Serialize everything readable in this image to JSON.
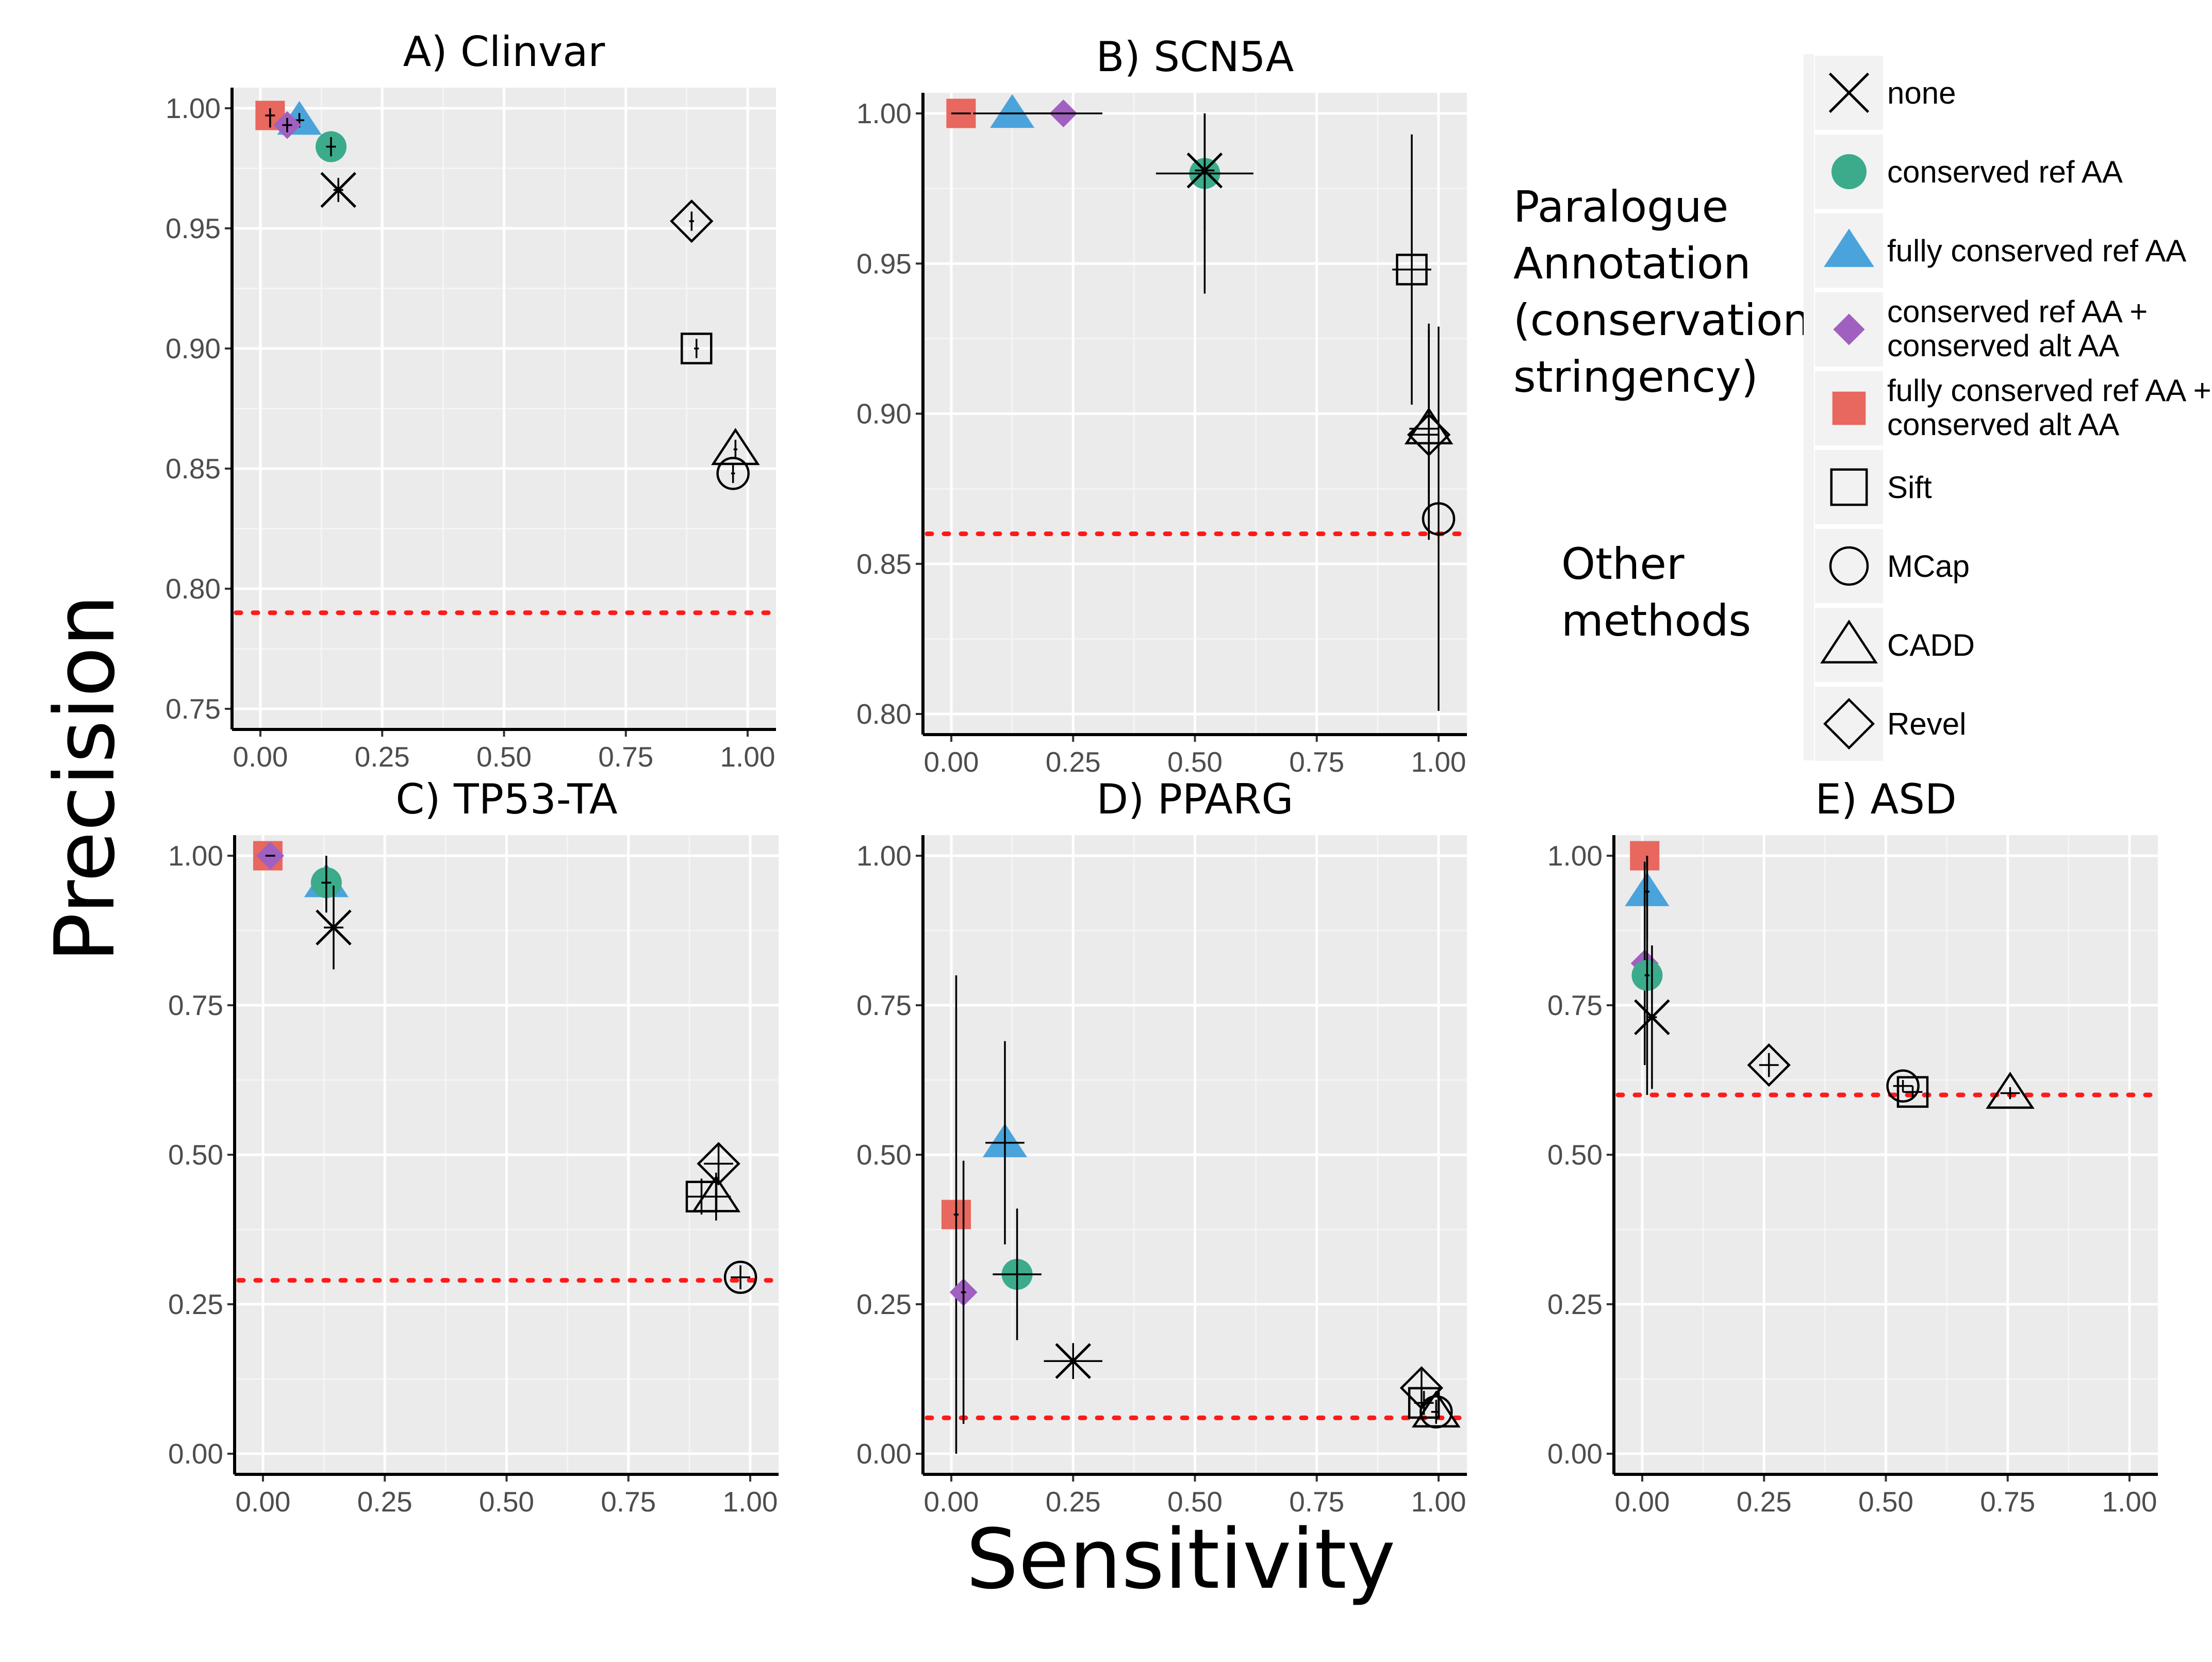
{
  "figure": {
    "ylabel": "Precision",
    "xlabel": "Sensitivity",
    "legend_group_paralogue": [
      "Paralogue",
      "Annotation",
      "(conservation",
      "stringency)"
    ],
    "legend_group_other": [
      "Other",
      "methods"
    ]
  },
  "legend": {
    "entries": [
      {
        "method": "none",
        "lines": [
          "none"
        ],
        "shape": "x-cross-icon",
        "color": "#000000"
      },
      {
        "method": "conserved ref AA",
        "lines": [
          "conserved ref AA"
        ],
        "shape": "filled-circle-icon",
        "color": "#3bab8c"
      },
      {
        "method": "fully conserved ref AA",
        "lines": [
          "fully conserved ref AA"
        ],
        "shape": "filled-triangle-icon",
        "color": "#4ba3db"
      },
      {
        "method": "conserved ref AA + conserved alt AA",
        "lines": [
          "conserved ref AA +",
          "conserved alt AA"
        ],
        "shape": "filled-diamond-icon",
        "color": "#a060c0"
      },
      {
        "method": "fully conserved ref AA + conserved alt AA",
        "lines": [
          "fully conserved ref AA +",
          "conserved alt AA"
        ],
        "shape": "filled-square-icon",
        "color": "#e8675e"
      },
      {
        "method": "Sift",
        "lines": [
          "Sift"
        ],
        "shape": "open-square-icon",
        "color": "#000000"
      },
      {
        "method": "MCap",
        "lines": [
          "MCap"
        ],
        "shape": "open-circle-icon",
        "color": "#000000"
      },
      {
        "method": "CADD",
        "lines": [
          "CADD"
        ],
        "shape": "open-triangle-icon",
        "color": "#000000"
      },
      {
        "method": "Revel",
        "lines": [
          "Revel"
        ],
        "shape": "open-diamond-icon",
        "color": "#000000"
      }
    ]
  },
  "chart_data": [
    {
      "type": "scatter",
      "title": "A) Clinvar",
      "xlim": [
        0,
        1
      ],
      "ylim": [
        0.75,
        1.0
      ],
      "xticks": [
        "0.00",
        "0.25",
        "0.50",
        "0.75",
        "1.00"
      ],
      "yticks": [
        "0.75",
        "0.80",
        "0.85",
        "0.90",
        "0.95",
        "1.00"
      ],
      "baseline_precision": 0.79,
      "points": [
        {
          "method": "fully conserved ref AA + conserved alt AA",
          "x": 0.02,
          "y": 0.997,
          "xerr": 0.01,
          "yerr": 0.005
        },
        {
          "method": "fully conserved ref AA",
          "x": 0.08,
          "y": 0.995,
          "xerr": 0.01,
          "yerr": 0.003
        },
        {
          "method": "conserved ref AA + conserved alt AA",
          "x": 0.055,
          "y": 0.993,
          "xerr": 0.01,
          "yerr": 0.003
        },
        {
          "method": "conserved ref AA",
          "x": 0.145,
          "y": 0.984,
          "xerr": 0.01,
          "yerr": 0.004
        },
        {
          "method": "none",
          "x": 0.16,
          "y": 0.966,
          "xerr": 0.01,
          "yerr": 0.005
        },
        {
          "method": "Revel",
          "x": 0.885,
          "y": 0.953,
          "xerr": 0.005,
          "yerr": 0.004
        },
        {
          "method": "Sift",
          "x": 0.895,
          "y": 0.9,
          "xerr": 0.005,
          "yerr": 0.004
        },
        {
          "method": "CADD",
          "x": 0.975,
          "y": 0.858,
          "xerr": 0.004,
          "yerr": 0.004
        },
        {
          "method": "MCap",
          "x": 0.97,
          "y": 0.848,
          "xerr": 0.004,
          "yerr": 0.004
        }
      ]
    },
    {
      "type": "scatter",
      "title": "B) SCN5A",
      "xlim": [
        0,
        1
      ],
      "ylim": [
        0.8,
        1.0
      ],
      "xticks": [
        "0.00",
        "0.25",
        "0.50",
        "0.75",
        "1.00"
      ],
      "yticks": [
        "0.80",
        "0.85",
        "0.90",
        "0.95",
        "1.00"
      ],
      "baseline_precision": 0.86,
      "points": [
        {
          "method": "fully conserved ref AA + conserved alt AA",
          "x": 0.02,
          "y": 1.0,
          "xerr": 0.02,
          "yerr": 0.0
        },
        {
          "method": "fully conserved ref AA",
          "x": 0.125,
          "y": 1.0,
          "xerr": 0.08,
          "yerr": 0.0
        },
        {
          "method": "conserved ref AA + conserved alt AA",
          "x": 0.23,
          "y": 1.0,
          "xerr": 0.08,
          "yerr": 0.0
        },
        {
          "method": "conserved ref AA",
          "x": 0.52,
          "y": 0.98,
          "xerr": 0.1,
          "yerr": 0.04
        },
        {
          "method": "none",
          "x": 0.52,
          "y": 0.981,
          "xerr": 0.02,
          "yerr": 0.02
        },
        {
          "method": "Sift",
          "x": 0.945,
          "y": 0.948,
          "xerr": 0.04,
          "yerr": 0.045
        },
        {
          "method": "CADD",
          "x": 0.98,
          "y": 0.895,
          "xerr": 0.04,
          "yerr": 0.035
        },
        {
          "method": "Revel",
          "x": 0.98,
          "y": 0.893,
          "xerr": 0.04,
          "yerr": 0.035
        },
        {
          "method": "MCap",
          "x": 1.0,
          "y": 0.865,
          "xerr": 0.0,
          "yerr": 0.064
        }
      ]
    },
    {
      "type": "scatter",
      "title": "C) TP53-TA",
      "xlim": [
        0,
        1
      ],
      "ylim": [
        0,
        1.0
      ],
      "xticks": [
        "0.00",
        "0.25",
        "0.50",
        "0.75",
        "1.00"
      ],
      "yticks": [
        "0.00",
        "0.25",
        "0.50",
        "0.75",
        "1.00"
      ],
      "baseline_precision": 0.29,
      "points": [
        {
          "method": "fully conserved ref AA + conserved alt AA",
          "x": 0.01,
          "y": 1.0,
          "xerr": 0.005,
          "yerr": 0.0
        },
        {
          "method": "conserved ref AA + conserved alt AA",
          "x": 0.015,
          "y": 1.0,
          "xerr": 0.01,
          "yerr": 0.0
        },
        {
          "method": "fully conserved ref AA",
          "x": 0.13,
          "y": 0.955,
          "xerr": 0.02,
          "yerr": 0.05
        },
        {
          "method": "conserved ref AA",
          "x": 0.13,
          "y": 0.955,
          "xerr": 0.01,
          "yerr": 0.03
        },
        {
          "method": "none",
          "x": 0.145,
          "y": 0.88,
          "xerr": 0.02,
          "yerr": 0.07
        },
        {
          "method": "Revel",
          "x": 0.935,
          "y": 0.485,
          "xerr": 0.03,
          "yerr": 0.03
        },
        {
          "method": "CADD",
          "x": 0.93,
          "y": 0.43,
          "xerr": 0.03,
          "yerr": 0.04
        },
        {
          "method": "Sift",
          "x": 0.9,
          "y": 0.43,
          "xerr": 0.03,
          "yerr": 0.03
        },
        {
          "method": "MCap",
          "x": 0.98,
          "y": 0.295,
          "xerr": 0.02,
          "yerr": 0.02
        }
      ]
    },
    {
      "type": "scatter",
      "title": "D) PPARG",
      "xlim": [
        0,
        1
      ],
      "ylim": [
        0,
        1.0
      ],
      "xticks": [
        "0.00",
        "0.25",
        "0.50",
        "0.75",
        "1.00"
      ],
      "yticks": [
        "0.00",
        "0.25",
        "0.50",
        "0.75",
        "1.00"
      ],
      "baseline_precision": 0.06,
      "points": [
        {
          "method": "fully conserved ref AA + conserved alt AA",
          "x": 0.01,
          "y": 0.4,
          "xerr": 0.005,
          "yerr": 0.4
        },
        {
          "method": "conserved ref AA + conserved alt AA",
          "x": 0.025,
          "y": 0.27,
          "xerr": 0.005,
          "yerr": 0.22
        },
        {
          "method": "fully conserved ref AA",
          "x": 0.11,
          "y": 0.52,
          "xerr": 0.04,
          "yerr": 0.17
        },
        {
          "method": "conserved ref AA",
          "x": 0.135,
          "y": 0.3,
          "xerr": 0.05,
          "yerr": 0.11
        },
        {
          "method": "none",
          "x": 0.25,
          "y": 0.155,
          "xerr": 0.06,
          "yerr": 0.03
        },
        {
          "method": "Revel",
          "x": 0.965,
          "y": 0.11,
          "xerr": 0.02,
          "yerr": 0.03
        },
        {
          "method": "Sift",
          "x": 0.97,
          "y": 0.085,
          "xerr": 0.02,
          "yerr": 0.02
        },
        {
          "method": "CADD",
          "x": 0.995,
          "y": 0.07,
          "xerr": 0.01,
          "yerr": 0.02
        },
        {
          "method": "MCap",
          "x": 0.995,
          "y": 0.07,
          "xerr": 0.01,
          "yerr": 0.02
        }
      ]
    },
    {
      "type": "scatter",
      "title": "E) ASD",
      "xlim": [
        0,
        1
      ],
      "ylim": [
        0,
        1.0
      ],
      "xticks": [
        "0.00",
        "0.25",
        "0.50",
        "0.75",
        "1.00"
      ],
      "yticks": [
        "0.00",
        "0.25",
        "0.50",
        "0.75",
        "1.00"
      ],
      "baseline_precision": 0.6,
      "points": [
        {
          "method": "fully conserved ref AA + conserved alt AA",
          "x": 0.005,
          "y": 1.0,
          "xerr": 0.0,
          "yerr": 0.0
        },
        {
          "method": "fully conserved ref AA",
          "x": 0.01,
          "y": 0.94,
          "xerr": 0.005,
          "yerr": 0.08
        },
        {
          "method": "conserved ref AA + conserved alt AA",
          "x": 0.005,
          "y": 0.82,
          "xerr": 0.005,
          "yerr": 0.17
        },
        {
          "method": "conserved ref AA",
          "x": 0.01,
          "y": 0.8,
          "xerr": 0.005,
          "yerr": 0.2
        },
        {
          "method": "none",
          "x": 0.02,
          "y": 0.73,
          "xerr": 0.01,
          "yerr": 0.12
        },
        {
          "method": "Revel",
          "x": 0.26,
          "y": 0.65,
          "xerr": 0.02,
          "yerr": 0.02
        },
        {
          "method": "MCap",
          "x": 0.535,
          "y": 0.615,
          "xerr": 0.02,
          "yerr": 0.01
        },
        {
          "method": "Sift",
          "x": 0.555,
          "y": 0.605,
          "xerr": 0.02,
          "yerr": 0.01
        },
        {
          "method": "CADD",
          "x": 0.755,
          "y": 0.603,
          "xerr": 0.02,
          "yerr": 0.01
        }
      ]
    }
  ]
}
